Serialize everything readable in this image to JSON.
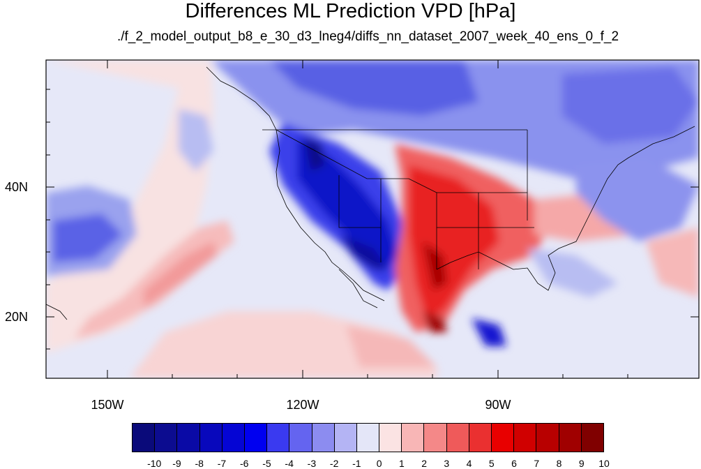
{
  "title": "Differences ML Prediction VPD [hPa]",
  "subtitle": "./f_2_model_output_b8_e_30_d3_lneg4/diffs_nn_dataset_2007_week_40_ens_0_f_2",
  "map": {
    "lat_labels": [
      "40N",
      "20N"
    ],
    "lon_labels": [
      "150W",
      "120W",
      "90W"
    ]
  },
  "colorbar": {
    "labels": [
      "-10",
      "-9",
      "-8",
      "-7",
      "-6",
      "-5",
      "-4",
      "-3",
      "-2",
      "-1",
      "0",
      "1",
      "2",
      "3",
      "4",
      "5",
      "6",
      "7",
      "8",
      "9",
      "10"
    ],
    "colors": [
      "#0a0a7a",
      "#0c0c90",
      "#0a0aa6",
      "#0808bc",
      "#0505d4",
      "#0000f0",
      "#3a3af0",
      "#6464f0",
      "#8c8cf0",
      "#b4b4f4",
      "#e4e6f8",
      "#fbe3e3",
      "#f8b6b6",
      "#f48888",
      "#ef5a5a",
      "#ea3030",
      "#e80000",
      "#d00000",
      "#b80000",
      "#a00000",
      "#800000"
    ]
  }
}
